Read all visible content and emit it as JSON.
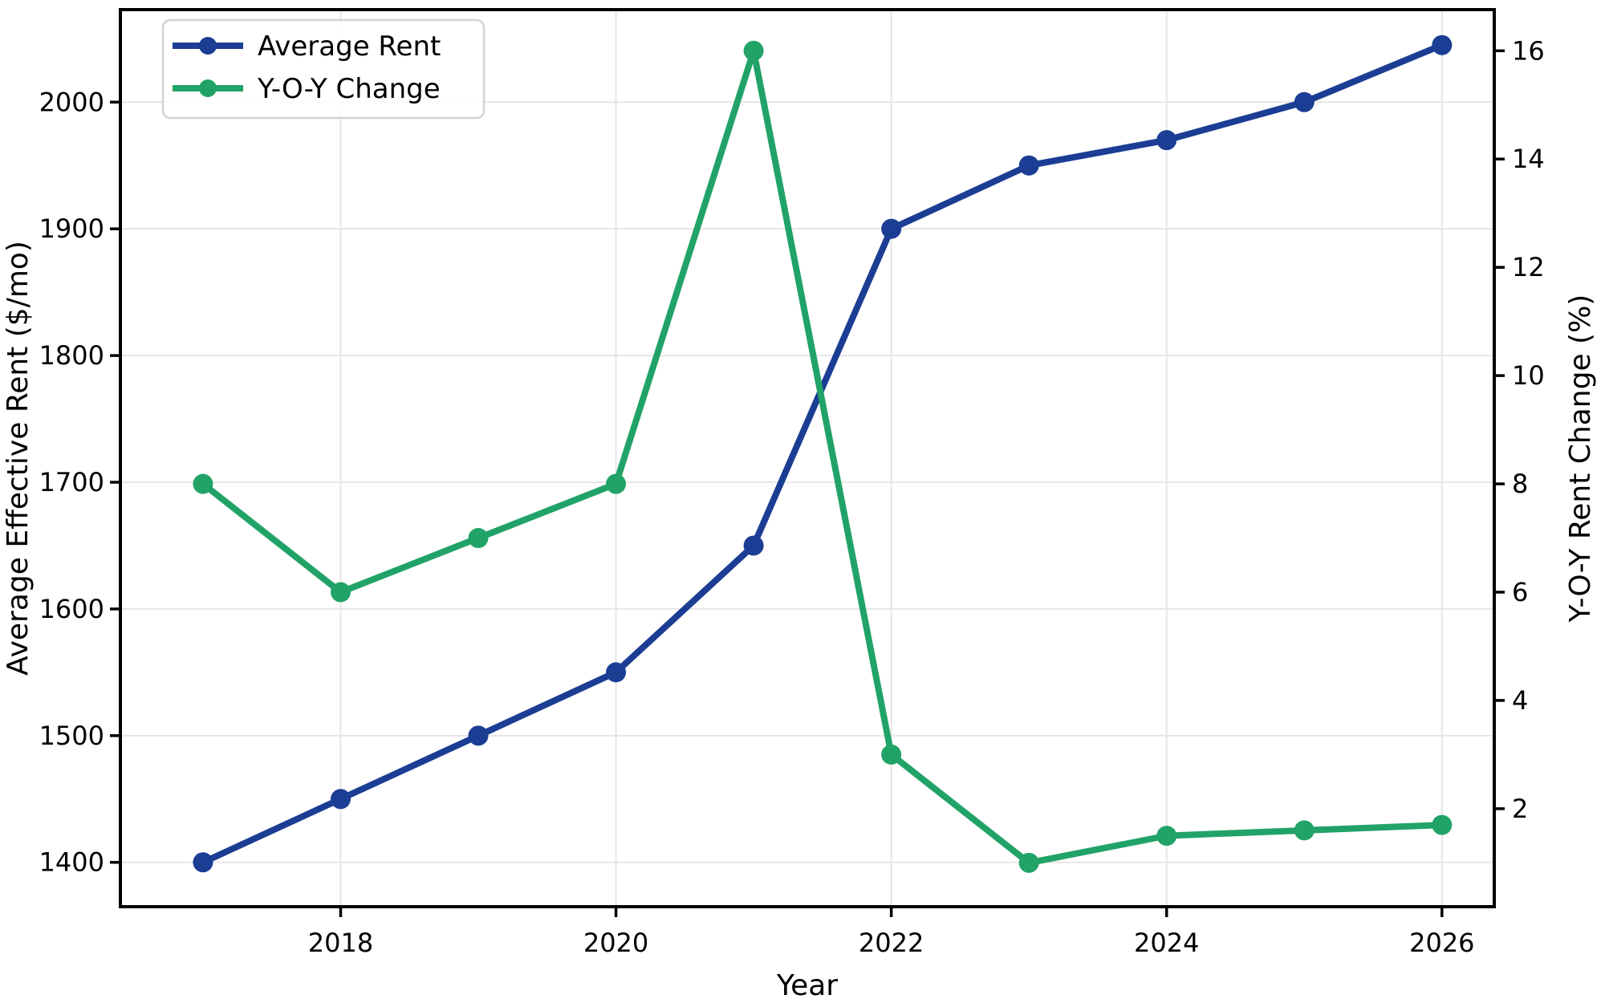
{
  "figure": {
    "background_color": "#ffffff",
    "text_color": "#000000",
    "grid_color": "#e6e6e6",
    "spine_color": "#000000",
    "legend_border_color": "#d2d2d2"
  },
  "chart_data": {
    "type": "line",
    "title": "",
    "xlabel": "Year",
    "ylabel_left": "Average Effective Rent ($/mo)",
    "ylabel_right": "Y-O-Y Rent Change (%)",
    "x": [
      2017,
      2018,
      2019,
      2020,
      2021,
      2022,
      2023,
      2024,
      2025,
      2026
    ],
    "series": [
      {
        "name": "Average Rent",
        "axis": "left",
        "color": "#1b3d94",
        "marker": "circle",
        "values": [
          1400,
          1450,
          1500,
          1550,
          1650,
          1900,
          1950,
          1970,
          2000,
          2045
        ]
      },
      {
        "name": "Y-O-Y Change",
        "axis": "right",
        "color": "#21a367",
        "marker": "circle",
        "values": [
          8,
          6,
          7,
          8,
          16,
          3,
          1,
          1.5,
          1.6,
          1.7
        ]
      }
    ],
    "x_ticks": [
      2018,
      2020,
      2022,
      2024,
      2026
    ],
    "y_ticks_left": [
      1400,
      1500,
      1600,
      1700,
      1800,
      1900,
      2000
    ],
    "y_ticks_right": [
      2,
      4,
      6,
      8,
      10,
      12,
      14,
      16
    ],
    "xlim": [
      2016.4,
      2026.38
    ],
    "ylim_left": [
      1365,
      2073
    ],
    "ylim_right": [
      0.19,
      16.76
    ],
    "grid": true,
    "legend_position": "upper left"
  }
}
